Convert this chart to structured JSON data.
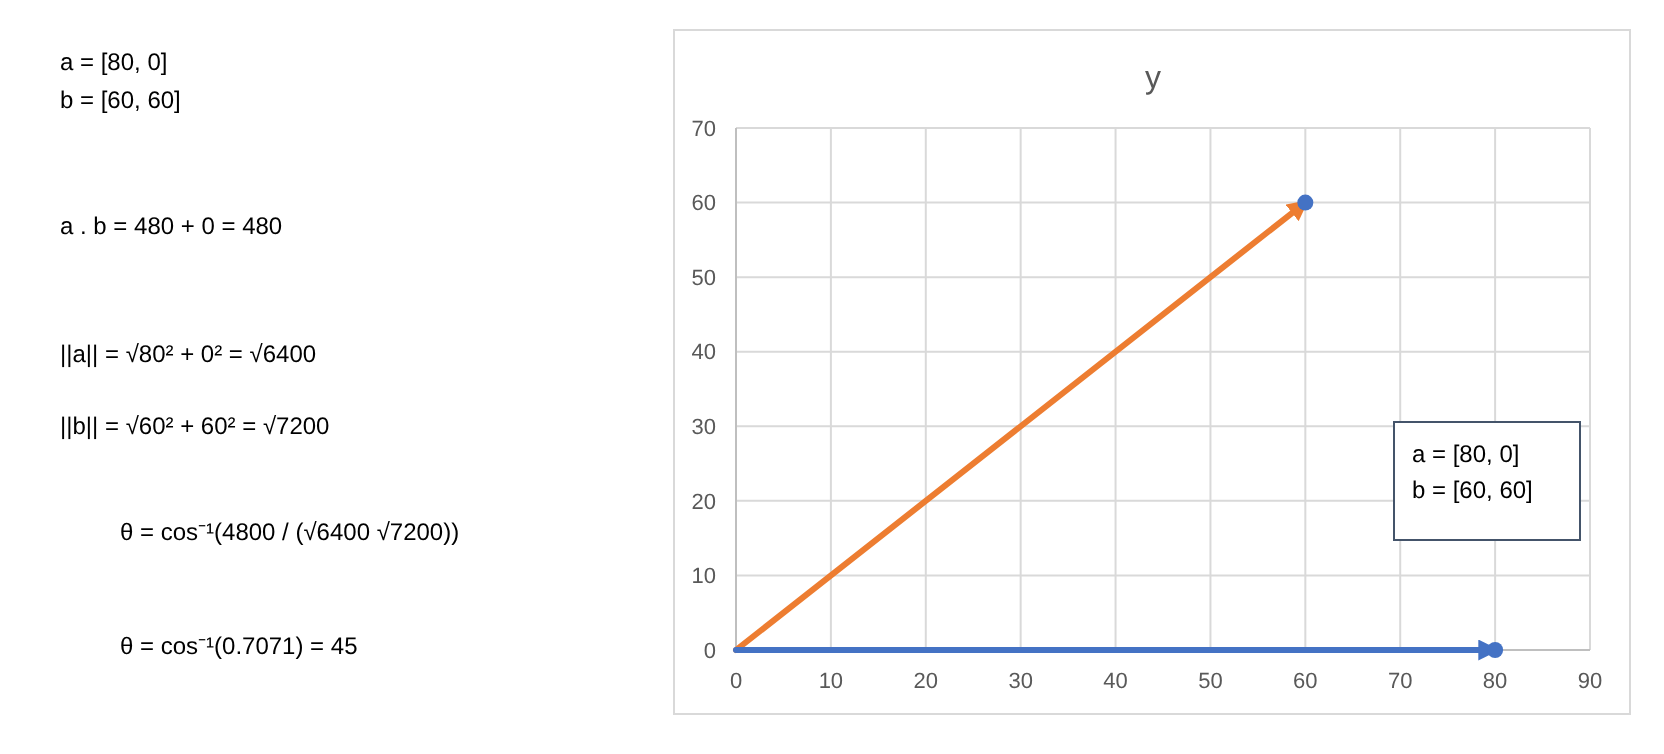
{
  "chart_data": {
    "type": "line",
    "title": "y",
    "xlim": [
      0,
      90
    ],
    "xticks": [
      0,
      10,
      20,
      30,
      40,
      50,
      60,
      70,
      80,
      90
    ],
    "ylim": [
      0,
      70
    ],
    "yticks": [
      0,
      10,
      20,
      30,
      40,
      50,
      60,
      70
    ],
    "grid": true,
    "line_style": "solid",
    "marker": "none",
    "series": [
      {
        "color": "#ed7d31",
        "x": [
          0,
          60
        ],
        "values": [
          0,
          60
        ]
      },
      {
        "color": "#4472c4",
        "x": [
          0,
          80
        ],
        "values": [
          0,
          0
        ]
      },
      {
        "type": "scatter",
        "marker": "circle",
        "color": "#4472c4",
        "x": [
          60,
          80
        ],
        "values": [
          60,
          0
        ]
      }
    ],
    "annotations": [
      "a = [80, 0]\nb = [60, 60]",
      "a . b = 480 + 0 = 480",
      "||a|| =   √80² + 0² = √6400",
      "||b|| =   √60² + 60² = √7200",
      "θ = cos⁻¹(4800 / (√6400 √7200))",
      "θ = cos⁻¹(0.7071) = 45",
      "a = [80, 0]\nb = [60, 60]"
    ]
  }
}
